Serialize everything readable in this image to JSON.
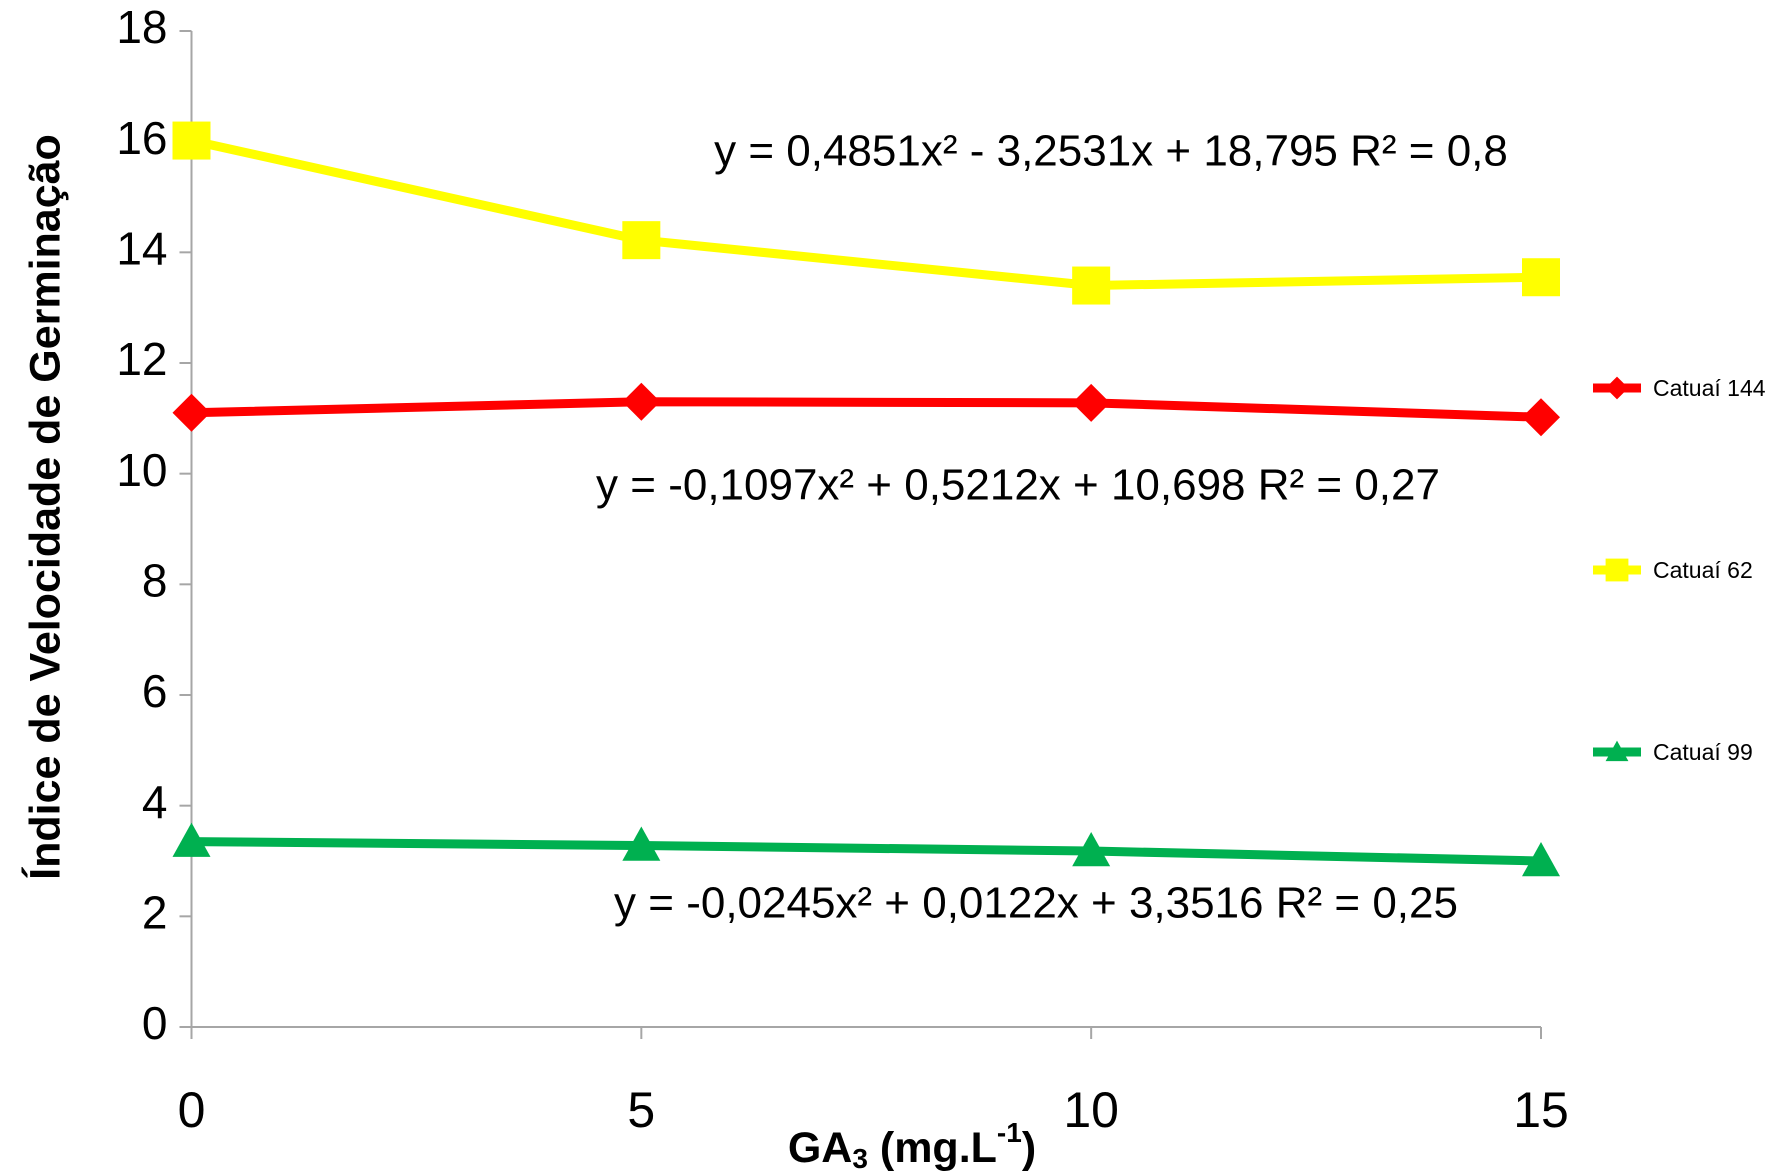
{
  "chart_data": {
    "type": "line",
    "x": [
      0,
      5,
      10,
      15
    ],
    "xlim": [
      0,
      15
    ],
    "xticks": [
      0,
      5,
      10,
      15
    ],
    "ylim": [
      0,
      18
    ],
    "yticks": [
      0,
      2,
      4,
      6,
      8,
      10,
      12,
      14,
      16,
      18
    ],
    "y_label": "Índice de Velocidade de Germinação",
    "x_label_parts": [
      "GA",
      "3",
      " (mg.L",
      "-1",
      ")"
    ],
    "legend": "right",
    "series": [
      {
        "name": "Catuaí 144",
        "color": "#ff0000",
        "marker": "diamond",
        "values": [
          11.1,
          11.3,
          11.28,
          11.02
        ]
      },
      {
        "name": "Catuaí 62",
        "color": "#ffff00",
        "marker": "square",
        "values": [
          16.02,
          14.22,
          13.4,
          13.55
        ]
      },
      {
        "name": "Catuaí 99",
        "color": "#00b050",
        "marker": "triangle",
        "values": [
          3.35,
          3.28,
          3.18,
          3.0
        ]
      }
    ],
    "annotations": [
      "y = 0,4851x² - 3,2531x + 18,795 R² = 0,8",
      "y = -0,1097x² + 0,5212x + 10,698 R² = 0,27",
      "y = -0,0245x² + 0,0122x + 3,3516 R² = 0,25"
    ]
  }
}
